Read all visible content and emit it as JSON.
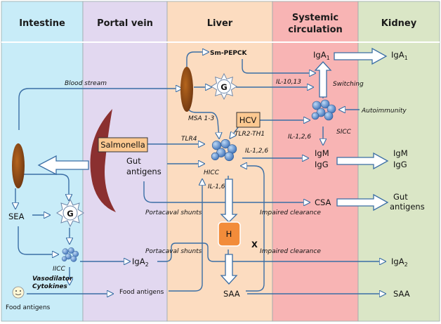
{
  "columns": [
    {
      "id": "intestine",
      "title": "Intestine",
      "color": "#c8ecf8"
    },
    {
      "id": "portal",
      "title": "Portal vein",
      "color": "#e2d8f0"
    },
    {
      "id": "liver",
      "title": "Liver",
      "color": "#fcdcc0"
    },
    {
      "id": "systemic",
      "title": "Systemic circulation",
      "title_line1": "Systemic",
      "title_line2": "circulation",
      "color": "#f8b4b4"
    },
    {
      "id": "kidney",
      "title": "Kidney",
      "color": "#dae6c6"
    }
  ],
  "nodes": {
    "sm_pepck": "Sm-PEPCK",
    "g_liver": "G",
    "g_intestine": "G",
    "hcv": "HCV",
    "salmonella": "Salmonella",
    "gut_antigens_line1": "Gut",
    "gut_antigens_line2": "antigens",
    "hicc": "HICC",
    "sicc": "SICC",
    "iicc": "IICC",
    "sea": "SEA",
    "h": "H",
    "saa_liver": "SAA",
    "saa_kidney": "SAA",
    "iga1_sys": "IgA",
    "iga1_sys_sub": "1",
    "iga1_kid": "IgA",
    "iga1_kid_sub": "1",
    "iga2_portal": "IgA",
    "iga2_portal_sub": "2",
    "iga2_kid": "IgA",
    "iga2_kid_sub": "2",
    "igm_sys": "IgM",
    "igg_sys": "IgG",
    "igm_kid": "IgM",
    "igg_kid": "IgG",
    "csa": "CSA",
    "gut_antigens_kid_line1": "Gut",
    "gut_antigens_kid_line2": "antigens",
    "food_antigens_portal": "Food antigens",
    "food_antigens_intestine": "Food antigens",
    "x_mark": "X"
  },
  "labels": {
    "blood_stream": "Blood stream",
    "il_10_13": "IL-10,13",
    "switching": "Switching",
    "msa": "MSA 1-3",
    "tlr2": "TLR2-TH1",
    "tlr4": "TLR4",
    "autoimmunity": "Autoimmunity",
    "il_1_2_6_sys": "IL-1,2,6",
    "il_1_2_6_liver": "IL-1,2,6",
    "il_1_6": "IL-1,6",
    "portacaval_1": "Portacaval shunts",
    "portacaval_2": "Portacaval shunts",
    "impaired_1": "Impaired clearance",
    "impaired_2": "Impaired clearance",
    "vasodilator": "Vasodilator",
    "cytokines": "Cytokines"
  },
  "colors": {
    "arrow": "#3a6ea5",
    "organ": "#8b4513",
    "spleen": "#8b3030",
    "box_fill": "#fcc890",
    "h_fill": "#f28c3a",
    "cell": "#5b8fd0"
  }
}
